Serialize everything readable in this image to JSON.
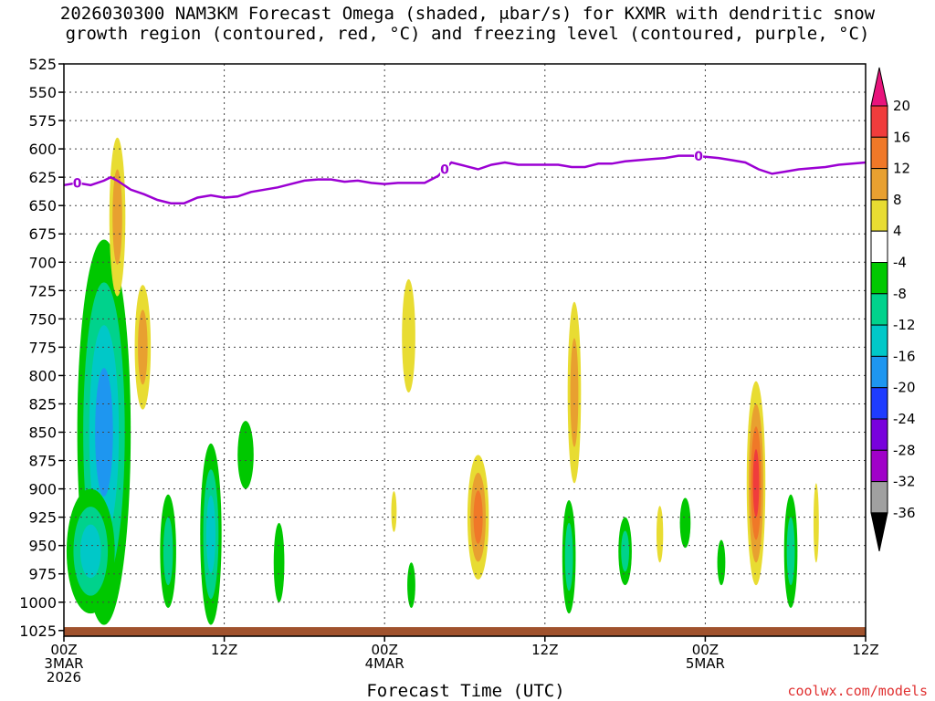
{
  "title_line1": "2026030300 NAM3KM Forecast Omega (shaded, μbar/s) for KXMR with dendritic snow",
  "title_line2": "growth region (contoured, red, °C) and freezing level (contoured, purple, °C)",
  "xlabel": "Forecast Time (UTC)",
  "credit": "coolwx.com/models",
  "chart_data": {
    "type": "heatmap",
    "title": "2026030300 NAM3KM Forecast Omega (shaded, μbar/s) for KXMR with dendritic snow growth region (contoured, red, °C) and freezing level (contoured, purple, °C)",
    "xlabel": "Forecast Time (UTC)",
    "ylabel": "",
    "x_range_hours": [
      0,
      60
    ],
    "y_range_hpa": [
      525,
      1030
    ],
    "y_reversed": true,
    "grid": true,
    "yticks": [
      525,
      550,
      575,
      600,
      625,
      650,
      675,
      700,
      725,
      750,
      775,
      800,
      825,
      850,
      875,
      900,
      925,
      950,
      975,
      1000,
      1025
    ],
    "xticks": [
      {
        "hour": 0,
        "lines": [
          "00Z",
          "3MAR",
          "2026"
        ]
      },
      {
        "hour": 12,
        "lines": [
          "12Z"
        ]
      },
      {
        "hour": 24,
        "lines": [
          "00Z",
          "4MAR"
        ]
      },
      {
        "hour": 36,
        "lines": [
          "12Z"
        ]
      },
      {
        "hour": 48,
        "lines": [
          "00Z",
          "5MAR"
        ]
      },
      {
        "hour": 60,
        "lines": [
          "12Z"
        ]
      }
    ],
    "colorbar": {
      "labels": [
        "20",
        "16",
        "12",
        "8",
        "4",
        "-4",
        "-8",
        "-12",
        "-16",
        "-20",
        "-24",
        "-28",
        "-32",
        "-36"
      ],
      "bins": [
        {
          "label": "> 20",
          "color": "#e8147c"
        },
        {
          "label": "16-20",
          "color": "#f03c3c"
        },
        {
          "label": "12-16",
          "color": "#f07828"
        },
        {
          "label": "8-12",
          "color": "#e8a030"
        },
        {
          "label": "4-8",
          "color": "#e8dc32"
        },
        {
          "label": "-4-4",
          "color": "#ffffff"
        },
        {
          "label": "-8--4",
          "color": "#00c800"
        },
        {
          "label": "-12--8",
          "color": "#00d28c"
        },
        {
          "label": "-16--12",
          "color": "#00c8c8"
        },
        {
          "label": "-20--16",
          "color": "#1e96f0"
        },
        {
          "label": "-24--20",
          "color": "#1e3cff"
        },
        {
          "label": "-28--24",
          "color": "#7800dc"
        },
        {
          "label": "-32--28",
          "color": "#a000c8"
        },
        {
          "label": "-36--32",
          "color": "#a0a0a0"
        },
        {
          "label": "< -36",
          "color": "#000000"
        }
      ]
    },
    "colors": {
      "freezing_level": "#9b00d3",
      "terrain": "#a0522d",
      "credit": "#e03030"
    },
    "freezing_level_label": "0",
    "freezing_level": {
      "hours": [
        0,
        1,
        2,
        3,
        3.5,
        4,
        5,
        6,
        7,
        8,
        9,
        10,
        11,
        12,
        13,
        14,
        15,
        16,
        17,
        18,
        19,
        20,
        21,
        22,
        23,
        24,
        25,
        26,
        27,
        28,
        29,
        30,
        31,
        32,
        33,
        34,
        35,
        36,
        37,
        38,
        39,
        40,
        41,
        42,
        43,
        44,
        45,
        46,
        47,
        48,
        49,
        50,
        51,
        52,
        53,
        54,
        55,
        56,
        57,
        58,
        59,
        60
      ],
      "hpa": [
        632,
        630,
        632,
        628,
        625,
        628,
        636,
        640,
        645,
        648,
        648,
        643,
        641,
        643,
        642,
        638,
        636,
        634,
        631,
        628,
        627,
        627,
        629,
        628,
        630,
        631,
        630,
        630,
        630,
        624,
        612,
        615,
        618,
        614,
        612,
        614,
        614,
        614,
        614,
        616,
        616,
        613,
        613,
        611,
        610,
        609,
        608,
        606,
        606,
        607,
        608,
        610,
        612,
        618,
        622,
        620,
        618,
        617,
        616,
        614,
        613,
        612
      ],
      "label_hours": [
        1,
        28.5,
        47.5
      ]
    },
    "omega_features": [
      {
        "sign": "negative",
        "hour": 3.0,
        "hpa": 850,
        "dh": 2.0,
        "dp": 170,
        "peak": -18
      },
      {
        "sign": "negative",
        "hour": 2.0,
        "hpa": 955,
        "dh": 1.8,
        "dp": 55,
        "peak": -14
      },
      {
        "sign": "negative",
        "hour": 7.8,
        "hpa": 955,
        "dh": 0.6,
        "dp": 50,
        "peak": -8
      },
      {
        "sign": "negative",
        "hour": 11.0,
        "hpa": 940,
        "dh": 0.8,
        "dp": 80,
        "peak": -12
      },
      {
        "sign": "negative",
        "hour": 13.6,
        "hpa": 870,
        "dh": 0.6,
        "dp": 30,
        "peak": -6
      },
      {
        "sign": "negative",
        "hour": 16.1,
        "hpa": 965,
        "dh": 0.4,
        "dp": 35,
        "peak": -6
      },
      {
        "sign": "negative",
        "hour": 26.0,
        "hpa": 985,
        "dh": 0.3,
        "dp": 20,
        "peak": -6
      },
      {
        "sign": "negative",
        "hour": 37.8,
        "hpa": 960,
        "dh": 0.5,
        "dp": 50,
        "peak": -10
      },
      {
        "sign": "negative",
        "hour": 42.0,
        "hpa": 955,
        "dh": 0.5,
        "dp": 30,
        "peak": -8
      },
      {
        "sign": "negative",
        "hour": 46.5,
        "hpa": 930,
        "dh": 0.4,
        "dp": 22,
        "peak": -6
      },
      {
        "sign": "negative",
        "hour": 49.2,
        "hpa": 965,
        "dh": 0.3,
        "dp": 20,
        "peak": -6
      },
      {
        "sign": "negative",
        "hour": 54.4,
        "hpa": 955,
        "dh": 0.5,
        "dp": 50,
        "peak": -10
      },
      {
        "sign": "positive",
        "hour": 4.0,
        "hpa": 660,
        "dh": 0.6,
        "dp": 70,
        "peak": 10
      },
      {
        "sign": "positive",
        "hour": 5.9,
        "hpa": 775,
        "dh": 0.6,
        "dp": 55,
        "peak": 8
      },
      {
        "sign": "positive",
        "hour": 25.8,
        "hpa": 765,
        "dh": 0.5,
        "dp": 50,
        "peak": 6
      },
      {
        "sign": "positive",
        "hour": 24.7,
        "hpa": 920,
        "dh": 0.2,
        "dp": 18,
        "peak": 5
      },
      {
        "sign": "positive",
        "hour": 31.0,
        "hpa": 925,
        "dh": 0.8,
        "dp": 55,
        "peak": 14
      },
      {
        "sign": "positive",
        "hour": 38.2,
        "hpa": 815,
        "dh": 0.5,
        "dp": 80,
        "peak": 8
      },
      {
        "sign": "positive",
        "hour": 44.6,
        "hpa": 940,
        "dh": 0.25,
        "dp": 25,
        "peak": 5
      },
      {
        "sign": "positive",
        "hour": 51.8,
        "hpa": 895,
        "dh": 0.7,
        "dp": 90,
        "peak": 19
      },
      {
        "sign": "positive",
        "hour": 56.3,
        "hpa": 930,
        "dh": 0.2,
        "dp": 35,
        "peak": 5
      }
    ]
  }
}
